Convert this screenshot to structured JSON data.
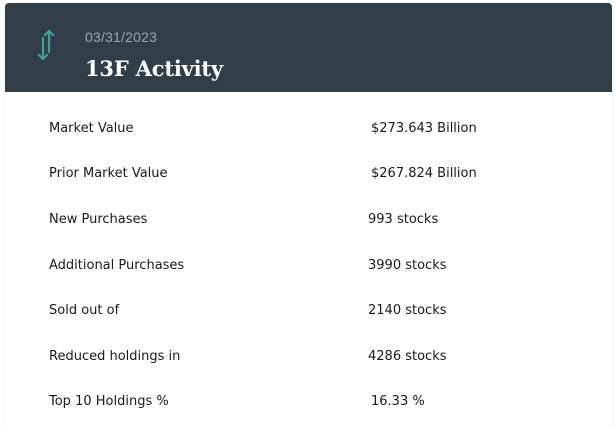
{
  "header": {
    "icon": "arrows-up-down-icon",
    "date": "03/31/2023",
    "title": "13F Activity",
    "background": "#313d47",
    "icon_color": "#3fa39a"
  },
  "rows": [
    {
      "label": "Market Value",
      "value": "$273.643 Billion"
    },
    {
      "label": "Prior Market Value",
      "value": "$267.824 Billion"
    },
    {
      "label": "New Purchases",
      "value": "993 stocks"
    },
    {
      "label": "Additional Purchases",
      "value": "3990 stocks"
    },
    {
      "label": "Sold out of",
      "value": "2140 stocks"
    },
    {
      "label": "Reduced holdings in",
      "value": "4286 stocks"
    },
    {
      "label": "Top 10 Holdings %",
      "value": "16.33 %"
    }
  ]
}
